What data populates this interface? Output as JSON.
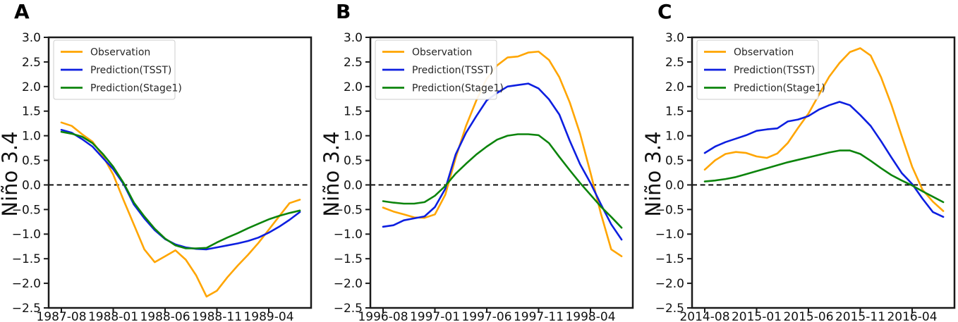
{
  "figure": {
    "background": "#ffffff",
    "axis_color": "#1a1a1a",
    "text_color": "#111111",
    "zero_line_color": "#000000"
  },
  "chart_data": [
    {
      "panel_label": "A",
      "type": "line",
      "title": "",
      "ylabel": "Niño 3.4",
      "xlabel": "",
      "grid": false,
      "zero_line": true,
      "legend_position": "upper left",
      "ylim": [
        -2.5,
        3.0
      ],
      "ytick_step": 0.5,
      "ytick_labels": [
        "3.0",
        "2.5",
        "2.0",
        "1.5",
        "1.0",
        "0.5",
        "0.0",
        "−0.5",
        "−1.0",
        "−1.5",
        "−2.0",
        "−2.5"
      ],
      "x": [
        "1987-08",
        "1987-09",
        "1987-10",
        "1987-11",
        "1987-12",
        "1988-01",
        "1988-02",
        "1988-03",
        "1988-04",
        "1988-05",
        "1988-06",
        "1988-07",
        "1988-08",
        "1988-09",
        "1988-10",
        "1988-11",
        "1988-12",
        "1989-01",
        "1989-02",
        "1989-03",
        "1989-04",
        "1989-05",
        "1989-06",
        "1989-07"
      ],
      "xtick_indices": [
        0,
        5,
        10,
        15,
        20
      ],
      "xtick_labels": [
        "1987-08",
        "1988-01",
        "1988-06",
        "1988-11",
        "1989-04"
      ],
      "series": [
        {
          "label": "Observation",
          "color": "#FFA500",
          "values": [
            1.27,
            1.2,
            1.03,
            0.88,
            0.59,
            0.21,
            -0.31,
            -0.81,
            -1.31,
            -1.57,
            -1.45,
            -1.33,
            -1.52,
            -1.84,
            -2.27,
            -2.15,
            -1.88,
            -1.64,
            -1.42,
            -1.18,
            -0.91,
            -0.64,
            -0.37,
            -0.3
          ]
        },
        {
          "label": "Prediction(TSST)",
          "color": "#0D1FE0",
          "values": [
            1.12,
            1.06,
            0.93,
            0.78,
            0.55,
            0.32,
            0.02,
            -0.4,
            -0.68,
            -0.92,
            -1.1,
            -1.21,
            -1.27,
            -1.3,
            -1.31,
            -1.27,
            -1.23,
            -1.19,
            -1.14,
            -1.07,
            -0.97,
            -0.85,
            -0.71,
            -0.55
          ]
        },
        {
          "label": "Prediction(Stage1)",
          "color": "#0C840C",
          "values": [
            1.08,
            1.04,
            0.98,
            0.85,
            0.63,
            0.37,
            0.04,
            -0.36,
            -0.64,
            -0.89,
            -1.09,
            -1.23,
            -1.29,
            -1.29,
            -1.28,
            -1.17,
            -1.07,
            -0.98,
            -0.88,
            -0.79,
            -0.7,
            -0.63,
            -0.57,
            -0.52
          ]
        }
      ]
    },
    {
      "panel_label": "B",
      "type": "line",
      "title": "",
      "ylabel": "Niño 3.4",
      "xlabel": "",
      "grid": false,
      "zero_line": true,
      "legend_position": "upper left",
      "ylim": [
        -2.5,
        3.0
      ],
      "ytick_step": 0.5,
      "ytick_labels": [
        "3.0",
        "2.5",
        "2.0",
        "1.5",
        "1.0",
        "0.5",
        "0.0",
        "−0.5",
        "−1.0",
        "−1.5",
        "−2.0",
        "−2.5"
      ],
      "x": [
        "1996-08",
        "1996-09",
        "1996-10",
        "1996-11",
        "1996-12",
        "1997-01",
        "1997-02",
        "1997-03",
        "1997-04",
        "1997-05",
        "1997-06",
        "1997-07",
        "1997-08",
        "1997-09",
        "1997-10",
        "1997-11",
        "1997-12",
        "1998-01",
        "1998-02",
        "1998-03",
        "1998-04",
        "1998-05",
        "1998-06",
        "1998-07"
      ],
      "xtick_indices": [
        0,
        5,
        10,
        15,
        20
      ],
      "xtick_labels": [
        "1996-08",
        "1997-01",
        "1997-06",
        "1997-11",
        "1998-04"
      ],
      "series": [
        {
          "label": "Observation",
          "color": "#FFA500",
          "values": [
            -0.46,
            -0.54,
            -0.6,
            -0.66,
            -0.67,
            -0.6,
            -0.2,
            0.55,
            1.2,
            1.72,
            2.16,
            2.43,
            2.59,
            2.61,
            2.69,
            2.71,
            2.54,
            2.19,
            1.68,
            1.04,
            0.25,
            -0.58,
            -1.31,
            -1.45
          ]
        },
        {
          "label": "Prediction(TSST)",
          "color": "#0D1FE0",
          "values": [
            -0.85,
            -0.82,
            -0.72,
            -0.68,
            -0.64,
            -0.45,
            -0.08,
            0.62,
            1.06,
            1.4,
            1.72,
            1.87,
            2.0,
            2.03,
            2.06,
            1.96,
            1.74,
            1.43,
            0.9,
            0.42,
            0.04,
            -0.39,
            -0.8,
            -1.11
          ]
        },
        {
          "label": "Prediction(Stage1)",
          "color": "#0C840C",
          "values": [
            -0.33,
            -0.36,
            -0.38,
            -0.38,
            -0.35,
            -0.22,
            -0.02,
            0.23,
            0.43,
            0.62,
            0.78,
            0.92,
            1.0,
            1.03,
            1.03,
            1.01,
            0.85,
            0.57,
            0.3,
            0.04,
            -0.2,
            -0.44,
            -0.65,
            -0.87
          ]
        }
      ]
    },
    {
      "panel_label": "C",
      "type": "line",
      "title": "",
      "ylabel": "Niño 3.4",
      "xlabel": "",
      "grid": false,
      "zero_line": true,
      "legend_position": "upper left",
      "ylim": [
        -2.5,
        3.0
      ],
      "ytick_step": 0.5,
      "ytick_labels": [
        "3.0",
        "2.5",
        "2.0",
        "1.5",
        "1.0",
        "0.5",
        "0.0",
        "−0.5",
        "−1.0",
        "−1.5",
        "−2.0",
        "−2.5"
      ],
      "x": [
        "2014-08",
        "2014-09",
        "2014-10",
        "2014-11",
        "2014-12",
        "2015-01",
        "2015-02",
        "2015-03",
        "2015-04",
        "2015-05",
        "2015-06",
        "2015-07",
        "2015-08",
        "2015-09",
        "2015-10",
        "2015-11",
        "2015-12",
        "2016-01",
        "2016-02",
        "2016-03",
        "2016-04",
        "2016-05",
        "2016-06",
        "2016-07"
      ],
      "xtick_indices": [
        0,
        5,
        10,
        15,
        20
      ],
      "xtick_labels": [
        "2014-08",
        "2015-01",
        "2015-06",
        "2015-11",
        "2016-04"
      ],
      "series": [
        {
          "label": "Observation",
          "color": "#FFA500",
          "values": [
            0.31,
            0.5,
            0.63,
            0.67,
            0.65,
            0.58,
            0.55,
            0.64,
            0.85,
            1.16,
            1.45,
            1.83,
            2.2,
            2.48,
            2.7,
            2.78,
            2.63,
            2.19,
            1.63,
            0.99,
            0.37,
            -0.1,
            -0.34,
            -0.53
          ]
        },
        {
          "label": "Prediction(TSST)",
          "color": "#0D1FE0",
          "values": [
            0.65,
            0.78,
            0.87,
            0.94,
            1.01,
            1.1,
            1.13,
            1.15,
            1.29,
            1.33,
            1.4,
            1.53,
            1.62,
            1.69,
            1.62,
            1.42,
            1.2,
            0.89,
            0.56,
            0.24,
            0.02,
            -0.28,
            -0.55,
            -0.65
          ]
        },
        {
          "label": "Prediction(Stage1)",
          "color": "#0C840C",
          "values": [
            0.07,
            0.09,
            0.12,
            0.16,
            0.22,
            0.28,
            0.34,
            0.4,
            0.46,
            0.51,
            0.56,
            0.61,
            0.66,
            0.7,
            0.7,
            0.63,
            0.49,
            0.34,
            0.2,
            0.09,
            -0.01,
            -0.13,
            -0.24,
            -0.35
          ]
        }
      ]
    }
  ]
}
